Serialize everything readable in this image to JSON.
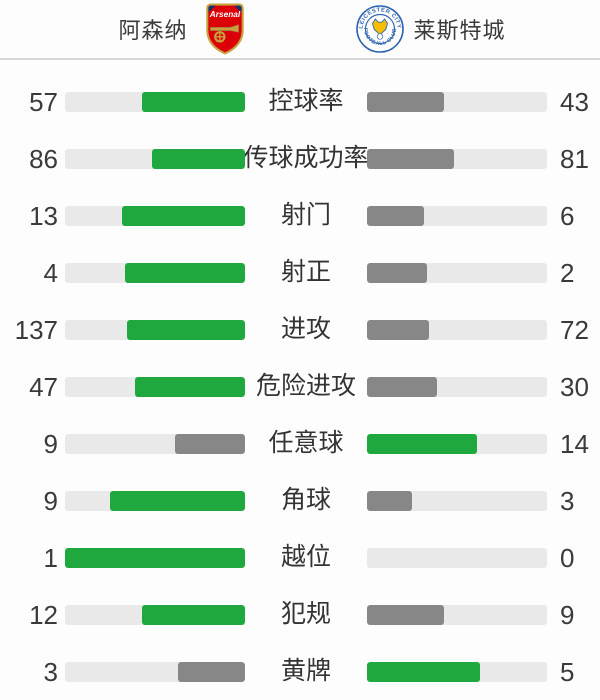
{
  "header": {
    "home_team": {
      "name": "阿森纳",
      "crest": "arsenal-crest"
    },
    "away_team": {
      "name": "莱斯特城",
      "crest": "leicester-city-crest"
    }
  },
  "colors": {
    "leader_bar": "#1EA83E",
    "trailer_bar": "#878787",
    "track": "#E9E9E9",
    "divider": "#D8D8D8",
    "text": "#3a3a3a",
    "arsenal_red": "#DB0007",
    "arsenal_gold": "#C8A03C",
    "leicester_blue": "#2D64B2",
    "leicester_gold": "#F6BE00"
  },
  "stats": {
    "rows": [
      {
        "label": "控球率",
        "home": 57,
        "away": 43
      },
      {
        "label": "传球成功率",
        "home": 86,
        "away": 81
      },
      {
        "label": "射门",
        "home": 13,
        "away": 6
      },
      {
        "label": "射正",
        "home": 4,
        "away": 2
      },
      {
        "label": "进攻",
        "home": 137,
        "away": 72
      },
      {
        "label": "危险进攻",
        "home": 47,
        "away": 30
      },
      {
        "label": "任意球",
        "home": 9,
        "away": 14
      },
      {
        "label": "角球",
        "home": 9,
        "away": 3
      },
      {
        "label": "越位",
        "home": 1,
        "away": 0
      },
      {
        "label": "犯规",
        "home": 12,
        "away": 9
      },
      {
        "label": "黄牌",
        "home": 3,
        "away": 5
      }
    ]
  }
}
